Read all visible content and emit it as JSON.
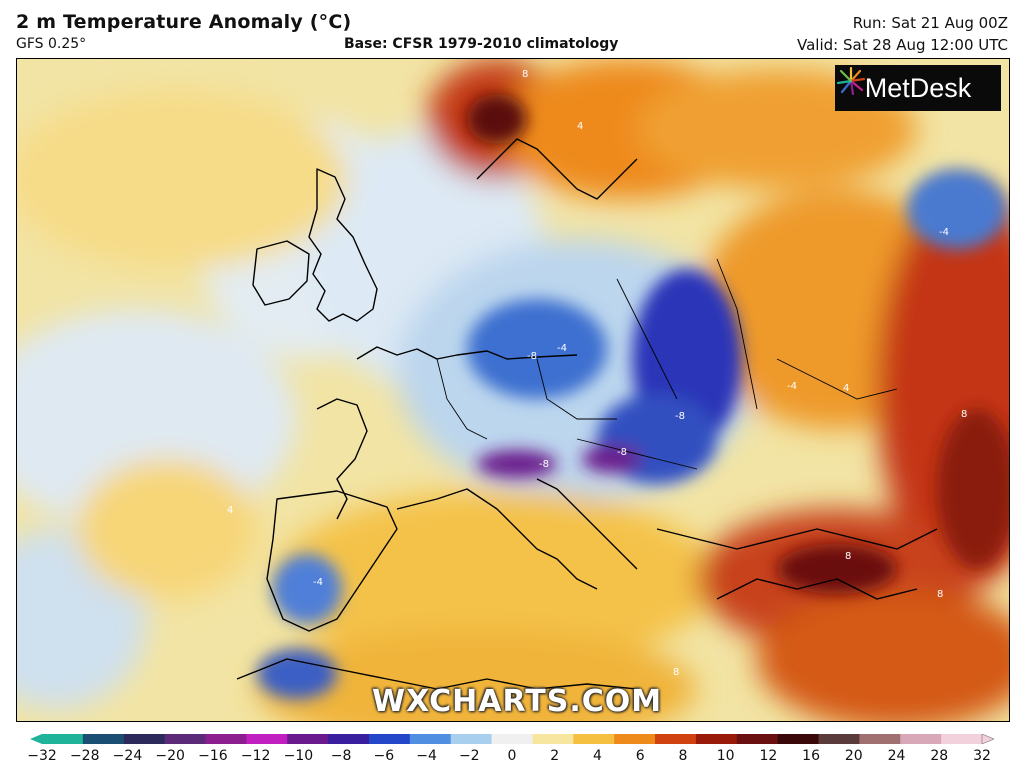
{
  "header": {
    "title": "2 m Temperature Anomaly (°C)",
    "model": "GFS 0.25°",
    "base": "Base: CFSR 1979-2010 climatology",
    "run": "Run: Sat 21 Aug 00Z",
    "valid": "Valid: Sat 28 Aug 12:00 UTC"
  },
  "logo": {
    "text": "MetDesk",
    "icon": "starburst-logo-icon"
  },
  "watermark": "WXCHARTS.COM",
  "contour_labels": [
    "8",
    "4",
    "-4",
    "-8",
    "8",
    "-8",
    "-8",
    "-4",
    "4",
    "8",
    "-4",
    "8",
    "4",
    "-8",
    "8",
    "-4"
  ],
  "colorbar": {
    "ticks": [
      "−32",
      "−28",
      "−24",
      "−20",
      "−16",
      "−12",
      "−10",
      "−8",
      "−6",
      "−4",
      "−2",
      "0",
      "2",
      "4",
      "6",
      "8",
      "10",
      "12",
      "16",
      "20",
      "24",
      "28",
      "32"
    ],
    "colors": [
      "#1fb39a",
      "#1a4f73",
      "#2c2a5a",
      "#5b2a78",
      "#8d1e8f",
      "#c21fc0",
      "#6a1a8c",
      "#3a1ea0",
      "#2446c8",
      "#4f8ee0",
      "#a8d0ee",
      "#f0f0f0",
      "#f7e6a0",
      "#f5c040",
      "#ee8a1c",
      "#d0420f",
      "#9a1a0a",
      "#6a1010",
      "#3a0808",
      "#5a3a3a",
      "#a07070",
      "#d8a8b8",
      "#f2d0dc"
    ]
  }
}
